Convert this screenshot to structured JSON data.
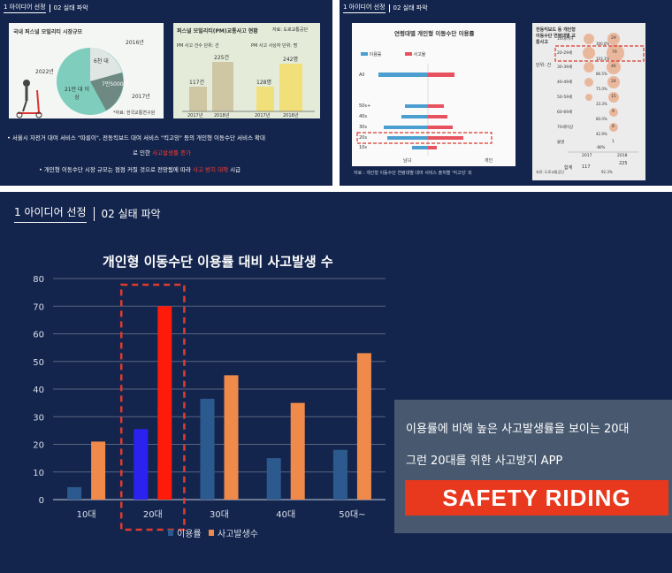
{
  "breadcrumb": {
    "step1": "1 아이디어 선정",
    "step2": "02 실태 파악"
  },
  "slide1": {
    "panel_a_title": "국내 퍼스널 모빌리티 시장규모",
    "panel_a_labels": {
      "y2016": "2016년",
      "value_6000": "6천 대",
      "y2017": "2017년",
      "value_75000": "7만5000대",
      "y2022": "2022년",
      "value_210000": "21만 대 이상"
    },
    "panel_a_source": "*자료: 한국교통연구원",
    "panel_b_title": "퍼스널 모빌리티(PM)교통사고 현황",
    "panel_b_source": "자료: 도로교통공단",
    "panel_b_sub1": "PM 사고 건수 단위: 건",
    "panel_b_sub2": "PM 사고 사상자 단위: 명",
    "panel_b_values": [
      "117건",
      "225건",
      "128명",
      "242명"
    ],
    "panel_b_years": [
      "2017년",
      "2018년",
      "2017년",
      "2018년"
    ],
    "bullet1": "서울시 자전거 대여 서비스 \"따릉이\", 전동킥보드 대여 서비스 \"킥고잉\" 등의 개인형 이동수단 서비스 확대",
    "bullet1b_prefix": "로 인한 ",
    "bullet1b_red": "사고발생률 증가",
    "bullet2_prefix": "개인형 이동수단 시장 규모는 점점 커질 것으로 전망됨에 따라 ",
    "bullet2_red": "사고 방지 대책",
    "bullet2_suffix": " 시급"
  },
  "slide2": {
    "panel_title": "연령대별 개인형 이동수단 이용률",
    "legend": [
      "이용률",
      "사고율"
    ],
    "rows": [
      "All",
      "50s+",
      "40s",
      "30s",
      "20s",
      "10s"
    ],
    "axis_left": "남녀",
    "axis_right": "개인",
    "source": "자료 : 개인형 이동수단 연령대별 대여 서비스 출처별 '킥고잉' 외",
    "side_title": "전동킥보드 등 개인형이동수단 연령대별 교통사고",
    "side_unit": "단위: 건",
    "side_rows": [
      "10대이하",
      "20-29세",
      "30-39세",
      "40-49세",
      "50-59세",
      "60-69세",
      "70세이상",
      "불명"
    ],
    "side_values": [
      "29",
      "79",
      "46",
      "24",
      "15",
      "9",
      "8",
      "1"
    ],
    "side_pct": [
      "300.0%",
      "103.3%",
      "86.5%",
      "75.0%",
      "33.3%",
      "80.0%",
      "42.9%",
      "-80%"
    ],
    "side_years": [
      "2017",
      "2018"
    ],
    "side_total_label": "합계",
    "side_total_2017": "117",
    "side_total_2018": "225",
    "side_total_pct": "92.3%",
    "side_source": "자료: 도로교통공단"
  },
  "slide3": {
    "title": "개인형 이동수단 이용률 대비 사고발생 수",
    "callout_line1": "이용률에 비해 높은 사고발생률을 보이는 20대",
    "callout_line2": "그런 20대를 위한 사고방지 APP",
    "callout_banner": "SAFETY RIDING"
  },
  "colors": {
    "background": "#14254d",
    "usage": "#2d5a8e",
    "usage_highlight": "#2b22f0",
    "accidents": "#f08a4b",
    "accidents_highlight": "#ff1a0a",
    "highlight_box": "#e03b2e",
    "banner": "#e8381d"
  },
  "chart_data": {
    "type": "bar",
    "title": "개인형 이동수단 이용률 대비 사고발생 수",
    "categories": [
      "10대",
      "20대",
      "30대",
      "40대",
      "50대~"
    ],
    "series": [
      {
        "name": "이용률",
        "values": [
          4.5,
          25.5,
          36.5,
          15,
          18
        ]
      },
      {
        "name": "사고발생수",
        "values": [
          21,
          70,
          45,
          35,
          53
        ]
      }
    ],
    "ylim": [
      0,
      80
    ],
    "yticks": [
      0,
      10,
      20,
      30,
      40,
      50,
      60,
      70,
      80
    ],
    "highlight_category": "20대",
    "grid": true,
    "legend": "bottom"
  }
}
